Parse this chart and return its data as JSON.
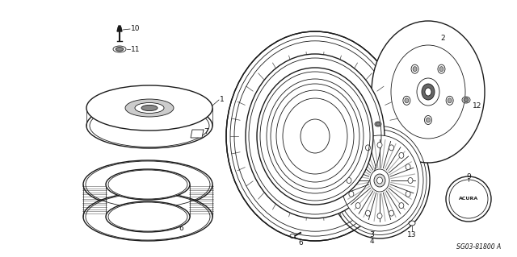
{
  "background_color": "#ffffff",
  "fig_width": 6.4,
  "fig_height": 3.19,
  "dpi": 100,
  "diagram_code": "SG03-81800 A",
  "font_size": 6.5,
  "line_color": "#1a1a1a",
  "text_color": "#111111"
}
